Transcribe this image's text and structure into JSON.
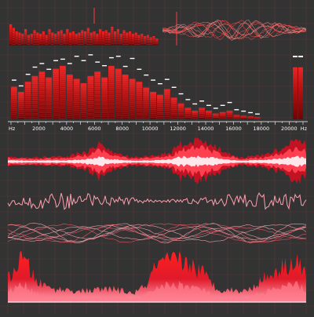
{
  "colors": {
    "background": "#333333",
    "grid": "#5a3a3a",
    "bar_dark": "#8a0a0a",
    "bar_mid": "#c01818",
    "bar_light": "#ff4a4a",
    "wave_pink": "#ff9fb0",
    "wave_core": "#ffe6ea",
    "axis_text": "#ffffff"
  },
  "chart_data": [
    {
      "type": "bar",
      "name": "top-mini-spectrum",
      "values": [
        0.9,
        0.75,
        0.6,
        0.55,
        0.5,
        0.7,
        0.45,
        0.5,
        0.65,
        0.55,
        0.5,
        0.6,
        0.45,
        0.7,
        0.55,
        0.5,
        0.6,
        0.65,
        0.5,
        0.7,
        0.55,
        0.6,
        0.5,
        0.55,
        0.65,
        0.6,
        0.75,
        0.55,
        0.6,
        0.5,
        0.7,
        0.6,
        0.65,
        0.55,
        0.8,
        0.6,
        0.7,
        0.5,
        0.65,
        0.55,
        0.6,
        0.5,
        0.55,
        0.45,
        0.5,
        0.4,
        0.45,
        0.35,
        0.4,
        0.3
      ]
    },
    {
      "type": "line",
      "name": "top-mini-wave-bundle",
      "series_count": 10,
      "samples": 60
    },
    {
      "type": "bar",
      "name": "frequency-spectrum",
      "x_unit": "Hz",
      "xlim": [
        0,
        21000
      ],
      "x_ticks": [
        2000,
        4000,
        6000,
        8000,
        10000,
        12000,
        14000,
        16000,
        18000,
        20000
      ],
      "x_tick_labels": [
        "2000",
        "4000",
        "6000",
        "8000",
        "10000",
        "12000",
        "14000",
        "16000",
        "18000",
        "20000"
      ],
      "axis_end_labels": [
        "Hz",
        "Hz"
      ],
      "band_width": 500,
      "bins": [
        {
          "f": 250,
          "v": 0.45,
          "peak": 0.55
        },
        {
          "f": 750,
          "v": 0.38,
          "peak": 0.47
        },
        {
          "f": 1250,
          "v": 0.52,
          "peak": 0.63
        },
        {
          "f": 1750,
          "v": 0.6,
          "peak": 0.73
        },
        {
          "f": 2250,
          "v": 0.66,
          "peak": 0.78
        },
        {
          "f": 2750,
          "v": 0.58,
          "peak": 0.7
        },
        {
          "f": 3250,
          "v": 0.7,
          "peak": 0.82
        },
        {
          "f": 3750,
          "v": 0.74,
          "peak": 0.84
        },
        {
          "f": 4250,
          "v": 0.62,
          "peak": 0.78
        },
        {
          "f": 4750,
          "v": 0.56,
          "peak": 0.88
        },
        {
          "f": 5250,
          "v": 0.5,
          "peak": 0.82
        },
        {
          "f": 5750,
          "v": 0.6,
          "peak": 0.9
        },
        {
          "f": 6250,
          "v": 0.66,
          "peak": 0.8
        },
        {
          "f": 6750,
          "v": 0.58,
          "peak": 0.75
        },
        {
          "f": 7250,
          "v": 0.74,
          "peak": 0.86
        },
        {
          "f": 7750,
          "v": 0.7,
          "peak": 0.88
        },
        {
          "f": 8250,
          "v": 0.62,
          "peak": 0.74
        },
        {
          "f": 8750,
          "v": 0.56,
          "peak": 0.85
        },
        {
          "f": 9250,
          "v": 0.52,
          "peak": 0.7
        },
        {
          "f": 9750,
          "v": 0.44,
          "peak": 0.62
        },
        {
          "f": 10250,
          "v": 0.38,
          "peak": 0.55
        },
        {
          "f": 10750,
          "v": 0.34,
          "peak": 0.5
        },
        {
          "f": 11250,
          "v": 0.42,
          "peak": 0.56
        },
        {
          "f": 11750,
          "v": 0.3,
          "peak": 0.45
        },
        {
          "f": 12250,
          "v": 0.22,
          "peak": 0.36
        },
        {
          "f": 12750,
          "v": 0.16,
          "peak": 0.28
        },
        {
          "f": 13250,
          "v": 0.12,
          "peak": 0.22
        },
        {
          "f": 13750,
          "v": 0.16,
          "peak": 0.26
        },
        {
          "f": 14250,
          "v": 0.12,
          "peak": 0.2
        },
        {
          "f": 14750,
          "v": 0.08,
          "peak": 0.16
        },
        {
          "f": 15250,
          "v": 0.1,
          "peak": 0.2
        },
        {
          "f": 15750,
          "v": 0.12,
          "peak": 0.24
        },
        {
          "f": 16250,
          "v": 0.06,
          "peak": 0.14
        },
        {
          "f": 16750,
          "v": 0.05,
          "peak": 0.12
        },
        {
          "f": 17250,
          "v": 0.04,
          "peak": 0.1
        },
        {
          "f": 17750,
          "v": 0.03,
          "peak": 0.08
        }
      ],
      "level_meter": {
        "values": [
          0.72,
          0.72
        ],
        "peak": 0.88
      }
    },
    {
      "type": "area",
      "name": "waveform-red",
      "samples": 190,
      "envelope_keys": [
        [
          0,
          0.25
        ],
        [
          0.08,
          0.2
        ],
        [
          0.2,
          0.25
        ],
        [
          0.28,
          0.55
        ],
        [
          0.31,
          0.95
        ],
        [
          0.34,
          0.5
        ],
        [
          0.42,
          0.2
        ],
        [
          0.5,
          0.3
        ],
        [
          0.55,
          0.45
        ],
        [
          0.58,
          0.95
        ],
        [
          0.66,
          1.0
        ],
        [
          0.72,
          0.5
        ],
        [
          0.78,
          0.2
        ],
        [
          0.85,
          0.3
        ],
        [
          0.92,
          0.6
        ],
        [
          0.97,
          1.0
        ],
        [
          1,
          0.8
        ]
      ]
    },
    {
      "type": "line",
      "name": "waveform-pink-noise",
      "samples": 190
    },
    {
      "type": "line",
      "name": "waveform-bundle",
      "series_count": 9,
      "samples": 80
    },
    {
      "type": "area",
      "name": "waveform-bottom",
      "samples": 200,
      "envelope_keys": [
        [
          0,
          0.55
        ],
        [
          0.05,
          1.0
        ],
        [
          0.1,
          0.45
        ],
        [
          0.15,
          0.3
        ],
        [
          0.25,
          0.25
        ],
        [
          0.35,
          0.3
        ],
        [
          0.42,
          0.2
        ],
        [
          0.46,
          0.35
        ],
        [
          0.5,
          0.85
        ],
        [
          0.58,
          0.95
        ],
        [
          0.65,
          0.7
        ],
        [
          0.7,
          0.3
        ],
        [
          0.8,
          0.25
        ],
        [
          0.86,
          0.55
        ],
        [
          0.92,
          0.8
        ],
        [
          0.97,
          0.95
        ],
        [
          1,
          0.6
        ]
      ]
    }
  ]
}
